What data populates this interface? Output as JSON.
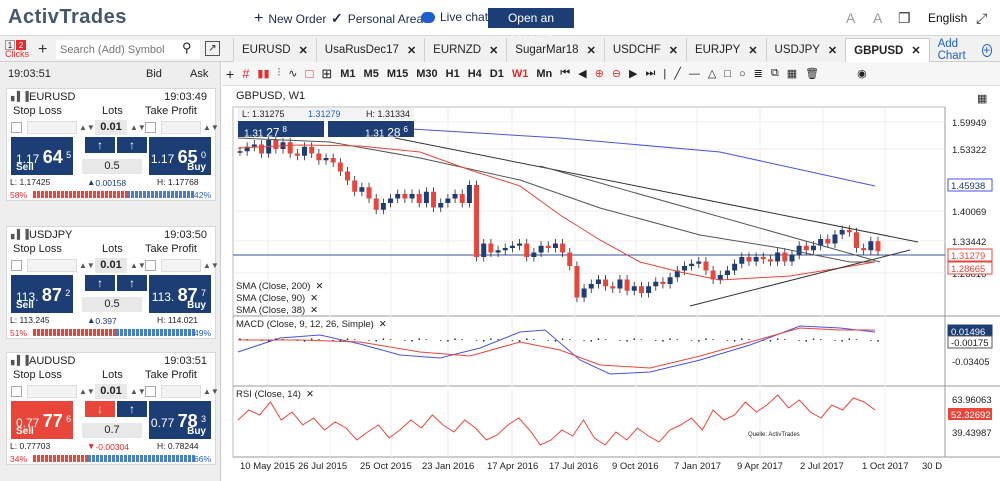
{
  "topbar": {
    "logo": "ActivTrades",
    "new_order": "New Order",
    "personal_area": "Personal Area",
    "live_chat": "Live chat",
    "open_account": "Open an account",
    "language": "English"
  },
  "symbol_bar": {
    "clicks_label": "Clicks",
    "clicks_options": [
      "1",
      "2"
    ],
    "search_placeholder": "Search (Add) Symbol"
  },
  "tabs": [
    {
      "label": "EURUSD"
    },
    {
      "label": "UsaRusDec17"
    },
    {
      "label": "EURNZD"
    },
    {
      "label": "SugarMar18"
    },
    {
      "label": "USDCHF"
    },
    {
      "label": "EURJPY"
    },
    {
      "label": "USDJPY"
    },
    {
      "label": "GBPUSD",
      "active": true
    }
  ],
  "add_chart": "Add Chart",
  "panel": {
    "time": "19:03:51",
    "bid_label": "Bid",
    "ask_label": "Ask",
    "stop_loss": "Stop Loss",
    "lots": "Lots",
    "take_profit": "Take Profit",
    "sell": "Sell",
    "buy": "Buy"
  },
  "instruments": [
    {
      "symbol": "EURUSD",
      "time": "19:03:49",
      "lot": "0.01",
      "sell_a": "1.17",
      "sell_b": "64",
      "sell_c": "5",
      "buy_a": "1.17",
      "buy_b": "65",
      "buy_c": "0",
      "spread": "0.5",
      "sell_color": "#1d3d75",
      "low": "L: 1.17425",
      "change": "0.00158",
      "change_dir": "up",
      "high": "H: 1.17768",
      "sell_pct": "58%",
      "buy_pct": "42%",
      "buy_fraction": 0.42
    },
    {
      "symbol": "USDJPY",
      "time": "19:03:50",
      "lot": "0.01",
      "sell_a": "113.",
      "sell_b": "87",
      "sell_c": "2",
      "buy_a": "113.",
      "buy_b": "87",
      "buy_c": "7",
      "spread": "0.5",
      "sell_color": "#1d3d75",
      "low": "L: 113.245",
      "change": "0.397",
      "change_dir": "up",
      "high": "H: 114.021",
      "sell_pct": "51%",
      "buy_pct": "49%",
      "buy_fraction": 0.49
    },
    {
      "symbol": "AUDUSD",
      "time": "19:03:51",
      "lot": "0.01",
      "sell_a": "0.77",
      "sell_b": "77",
      "sell_c": "6",
      "buy_a": "0.77",
      "buy_b": "78",
      "buy_c": "3",
      "spread": "0.7",
      "sell_color": "#e8463a",
      "low": "L: 0.77703",
      "change": "-0.00304",
      "change_dir": "down",
      "high": "H: 0.78244",
      "sell_pct": "34%",
      "buy_pct": "66%",
      "buy_fraction": 0.66
    }
  ],
  "toolbar": {
    "timeframes": [
      "M1",
      "M5",
      "M15",
      "M30",
      "H1",
      "H4",
      "D1",
      "W1",
      "Mn"
    ],
    "active_timeframe": "W1"
  },
  "chart": {
    "title": "GBPUSD, W1",
    "quote": {
      "low": "L: 1.31275",
      "mid": "1.31279",
      "high": "H: 1.31334",
      "bid_a": "1.31",
      "bid_b": "27",
      "bid_c": "8",
      "ask_a": "1.31",
      "ask_b": "28",
      "ask_c": "6"
    },
    "indicators_main": [
      "SMA (Close, 200)",
      "SMA (Close, 90)",
      "SMA (Close, 38)"
    ],
    "macd_label": "MACD (Close, 9, 12, 26, Simple)",
    "rsi_label": "RSI (Close, 14)",
    "watermark": "Quelle: ActivTrades",
    "colors": {
      "sma200": "#4a52e8",
      "sma90": "#555555",
      "sma38": "#e8463a",
      "up": "#1d3d75",
      "down": "#e8463a"
    }
  },
  "chart_data": {
    "type": "candlestick",
    "title": "GBPUSD, W1",
    "price_axis": [
      "1.59949",
      "1.53322",
      "1.40069",
      "1.33442",
      "1.26816"
    ],
    "price_tags": [
      {
        "value": "1.45938",
        "color": "#4a52e8"
      },
      {
        "value": "1.31279",
        "color": "#e8463a"
      },
      {
        "value": "1.28665",
        "color": "#e8463a"
      }
    ],
    "macd_axis": [
      "-0.03405"
    ],
    "macd_tags": [
      {
        "value": "0.01496",
        "color": "#1d3d75"
      },
      {
        "value": "-0.00175",
        "color": "#555555"
      }
    ],
    "rsi_axis": [
      "39.43987"
    ],
    "rsi_value_ticks": [
      "63.96063"
    ],
    "rsi_tag": {
      "value": "52.32692",
      "color": "#e8463a"
    },
    "x_labels": [
      "10 May 2015",
      "26 Jul 2015",
      "25 Oct 2015",
      "23 Jan 2016",
      "17 Apr 2016",
      "17 Jul 2016",
      "9 Oct 2016",
      "7 Jan 2017",
      "9 Apr 2017",
      "2 Jul 2017",
      "1 Oct 2017",
      "30 D"
    ],
    "close_series": [
      1.535,
      1.545,
      1.55,
      1.53,
      1.56,
      1.54,
      1.555,
      1.53,
      1.525,
      1.545,
      1.53,
      1.515,
      1.52,
      1.51,
      1.49,
      1.47,
      1.445,
      1.455,
      1.43,
      1.405,
      1.42,
      1.43,
      1.44,
      1.43,
      1.44,
      1.42,
      1.445,
      1.41,
      1.42,
      1.43,
      1.44,
      1.42,
      1.46,
      1.3,
      1.33,
      1.31,
      1.315,
      1.32,
      1.325,
      1.33,
      1.3,
      1.31,
      1.325,
      1.32,
      1.33,
      1.31,
      1.28,
      1.21,
      1.23,
      1.24,
      1.25,
      1.235,
      1.23,
      1.25,
      1.225,
      1.235,
      1.22,
      1.235,
      1.245,
      1.24,
      1.255,
      1.27,
      1.28,
      1.285,
      1.29,
      1.27,
      1.25,
      1.26,
      1.27,
      1.285,
      1.3,
      1.29,
      1.3,
      1.295,
      1.29,
      1.31,
      1.29,
      1.305,
      1.325,
      1.315,
      1.325,
      1.34,
      1.33,
      1.35,
      1.36,
      1.355,
      1.32,
      1.315,
      1.335,
      1.313
    ]
  }
}
